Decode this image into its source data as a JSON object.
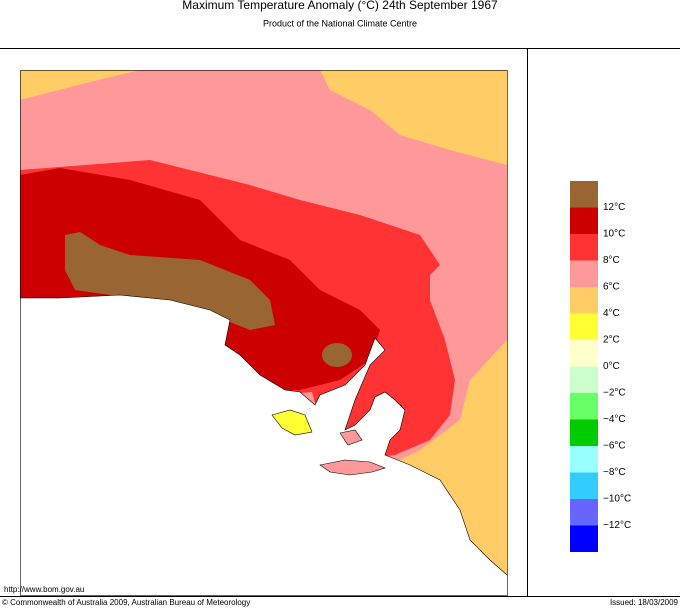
{
  "header": {
    "title": "Maximum Temperature Anomaly (°C)  24th September 1967",
    "subtitle": "Product of the National Climate Centre"
  },
  "legend": {
    "items": [
      {
        "label": null,
        "color": "#996633"
      },
      {
        "label": "12°C",
        "color": "#cc0000"
      },
      {
        "label": "10°C",
        "color": "#ff3333"
      },
      {
        "label": "8°C",
        "color": "#ff9999"
      },
      {
        "label": "6°C",
        "color": "#ffcc66"
      },
      {
        "label": "4°C",
        "color": "#ffff33"
      },
      {
        "label": "2°C",
        "color": "#ffffcc"
      },
      {
        "label": "0°C",
        "color": "#ccffcc"
      },
      {
        "label": "−2°C",
        "color": "#66ff66"
      },
      {
        "label": "−4°C",
        "color": "#00cc00"
      },
      {
        "label": "−6°C",
        "color": "#99ffff"
      },
      {
        "label": "−8°C",
        "color": "#33ccff"
      },
      {
        "label": "−10°C",
        "color": "#6666ff"
      },
      {
        "label": "−12°C",
        "color": "#0000ff"
      }
    ]
  },
  "footer": {
    "url": "http://www.bom.gov.au",
    "copyright": "© Commonwealth of Australia 2009, Australian Bureau of Meteorology",
    "issued": "Issued: 18/03/2009"
  }
}
